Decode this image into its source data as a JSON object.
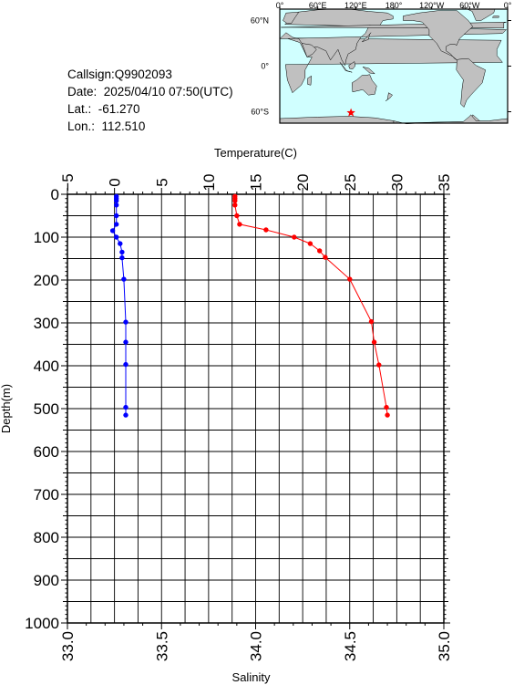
{
  "info": {
    "callsign": "Callsign:Q9902093",
    "date": "Date:  2025/04/10 07:50(UTC)",
    "lat": "Lat.:  -61.270",
    "lon": "Lon.:  112.510"
  },
  "map": {
    "lon_labels": [
      "0°",
      "60°E",
      "120°E",
      "180°",
      "120°W",
      "60°W",
      "0°"
    ],
    "lat_labels": [
      "60°N",
      "0°",
      "60°S"
    ],
    "ocean_color": "#d0ffff",
    "land_color": "#c0c0c0",
    "marker": {
      "lon": 112.51,
      "lat": -61.27,
      "color": "#ff0000",
      "shape": "star"
    }
  },
  "chart_data": {
    "type": "line",
    "ylabel": "Depth(m)",
    "y_ticks": [
      "0",
      "100",
      "200",
      "300",
      "400",
      "500",
      "600",
      "700",
      "800",
      "900",
      "1000"
    ],
    "ylim": [
      0,
      1000
    ],
    "y_inverted": true,
    "grid": true,
    "top_axis": {
      "label": "Temperature(C)",
      "ticks": [
        "−5",
        "0",
        "5",
        "10",
        "15",
        "20",
        "25",
        "30",
        "35"
      ],
      "range": [
        -5,
        35
      ]
    },
    "bottom_axis": {
      "label": "Salinity",
      "ticks": [
        "33.0",
        "33.5",
        "34.0",
        "34.5",
        "35.0"
      ],
      "range": [
        33.0,
        35.0
      ]
    },
    "series": [
      {
        "axis": "bottom",
        "color": "#0000ff",
        "points": [
          [
            33.26,
            5
          ],
          [
            33.26,
            10
          ],
          [
            33.26,
            15
          ],
          [
            33.26,
            25
          ],
          [
            33.26,
            50
          ],
          [
            33.26,
            70
          ],
          [
            33.24,
            85
          ],
          [
            33.26,
            100
          ],
          [
            33.28,
            115
          ],
          [
            33.29,
            135
          ],
          [
            33.29,
            148
          ],
          [
            33.3,
            198
          ],
          [
            33.31,
            298
          ],
          [
            33.31,
            345
          ],
          [
            33.31,
            397
          ],
          [
            33.31,
            497
          ],
          [
            33.31,
            515
          ]
        ]
      },
      {
        "axis": "top",
        "color": "#ff0000",
        "points": [
          [
            12.8,
            5
          ],
          [
            12.8,
            10
          ],
          [
            12.8,
            15
          ],
          [
            12.8,
            25
          ],
          [
            13.0,
            50
          ],
          [
            13.3,
            70
          ],
          [
            16.1,
            83
          ],
          [
            19.1,
            100
          ],
          [
            20.8,
            115
          ],
          [
            21.8,
            132
          ],
          [
            22.4,
            147
          ],
          [
            25.0,
            198
          ],
          [
            27.3,
            297
          ],
          [
            27.6,
            345
          ],
          [
            28.1,
            398
          ],
          [
            28.9,
            497
          ],
          [
            29.0,
            515
          ]
        ]
      }
    ]
  }
}
